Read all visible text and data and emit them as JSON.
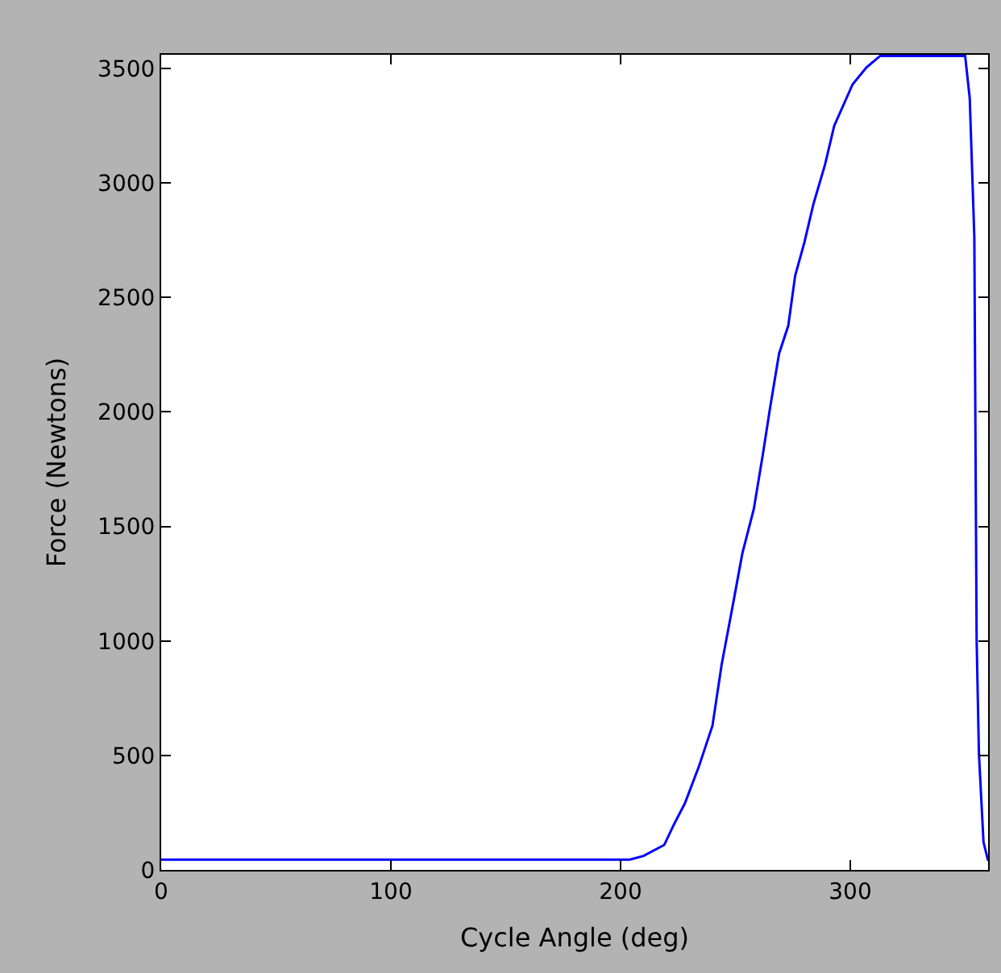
{
  "chart_data": {
    "type": "line",
    "xlabel": "Cycle Angle (deg)",
    "ylabel": "Force (Newtons)",
    "xlim": [
      0,
      360
    ],
    "xticks": [
      0,
      100,
      200,
      300
    ],
    "ylim": [
      0,
      3560
    ],
    "yticks": [
      0,
      500,
      1000,
      1500,
      2000,
      2500,
      3000,
      3500
    ],
    "marker": "none",
    "line_style": "solid",
    "series": [
      {
        "color": "#0000ff",
        "x": [
          0,
          100,
          204,
          210,
          219,
          223,
          228,
          234,
          240,
          244,
          249,
          253,
          258,
          262,
          265,
          269,
          273,
          276,
          280,
          284,
          289,
          293,
          301,
          307,
          313,
          350,
          352,
          354,
          354.5,
          355,
          356,
          358,
          360
        ],
        "values": [
          45,
          45,
          45,
          61,
          109,
          194,
          291,
          449,
          630,
          897,
          1164,
          1382,
          1576,
          1819,
          2013,
          2255,
          2377,
          2595,
          2740,
          2910,
          3080,
          3250,
          3431,
          3504,
          3555,
          3555,
          3371,
          2765,
          1892,
          1006,
          509,
          121,
          40
        ]
      }
    ]
  }
}
